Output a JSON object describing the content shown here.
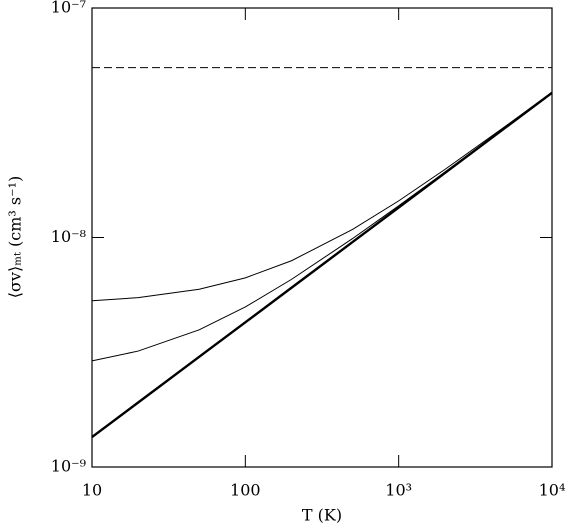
{
  "chart_data": {
    "type": "line",
    "xlabel": "T (K)",
    "ylabel": "⟨σv⟩ₘₜ (cm³ s⁻¹)",
    "xscale": "log",
    "yscale": "log",
    "xlim": [
      10,
      10000
    ],
    "ylim": [
      1e-09,
      1e-07
    ],
    "xticks": [
      10,
      100,
      {
        "value": 1000,
        "label": "10³"
      },
      {
        "value": 10000,
        "label": "10⁴"
      }
    ],
    "yticks": [
      {
        "value": 1e-09,
        "label": "10⁻⁹"
      },
      {
        "value": 1e-08,
        "label": "10⁻⁸"
      },
      {
        "value": 1e-07,
        "label": "10⁻⁷"
      }
    ],
    "x": [
      10,
      20,
      50,
      100,
      200,
      500,
      1000,
      2000,
      5000,
      10000
    ],
    "series": [
      {
        "color": "#000000",
        "width": 2.4,
        "dash": false,
        "values": [
          1.35e-09,
          1.91e-09,
          3.02e-09,
          4.27e-09,
          6.04e-09,
          9.55e-09,
          1.35e-08,
          1.91e-08,
          3.02e-08,
          4.27e-08
        ]
      },
      {
        "color": "#000000",
        "width": 1,
        "dash": false,
        "values": [
          2.9e-09,
          3.2e-09,
          3.96e-09,
          4.98e-09,
          6.57e-09,
          9.89e-09,
          1.374e-08,
          1.927e-08,
          3.031e-08,
          4.278e-08
        ]
      },
      {
        "color": "#000000",
        "width": 1,
        "dash": false,
        "values": [
          5.3e-09,
          5.47e-09,
          5.95e-09,
          6.67e-09,
          7.92e-09,
          1.084e-08,
          1.444e-08,
          1.978e-08,
          3.063e-08,
          4.3e-08
        ]
      },
      {
        "color": "#000000",
        "width": 1,
        "dash": true,
        "values": [
          5.5e-08,
          5.5e-08,
          5.5e-08,
          5.5e-08,
          5.5e-08,
          5.5e-08,
          5.5e-08,
          5.5e-08,
          5.5e-08,
          5.5e-08
        ]
      }
    ]
  }
}
